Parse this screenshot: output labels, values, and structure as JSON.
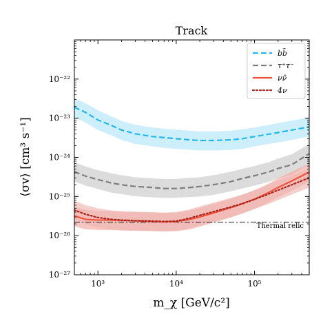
{
  "chart_data": {
    "type": "line",
    "title": "Track",
    "xlabel": "m_χ [GeV/c²]",
    "ylabel": "⟨σv⟩ [cm³ s⁻¹]",
    "x_scale": "log",
    "y_scale": "log",
    "xlim": [
      500,
      500000
    ],
    "ylim": [
      1e-27,
      1e-21
    ],
    "x_ticks": [
      {
        "value": 1000,
        "label": "10³"
      },
      {
        "value": 10000,
        "label": "10⁴"
      },
      {
        "value": 100000,
        "label": "10⁵"
      }
    ],
    "y_ticks": [
      {
        "value": 1e-27,
        "label": "10⁻²⁷"
      },
      {
        "value": 1e-26,
        "label": "10⁻²⁶"
      },
      {
        "value": 1e-25,
        "label": "10⁻²⁵"
      },
      {
        "value": 1e-24,
        "label": "10⁻²⁴"
      },
      {
        "value": 1e-23,
        "label": "10⁻²³"
      },
      {
        "value": 1e-22,
        "label": "10⁻²²"
      }
    ],
    "legend_position": "top-right",
    "series": [
      {
        "name": "bb̄",
        "color": "#22b8ee",
        "band_color": "#c4ecfa",
        "style": "dashed",
        "x": [
          500,
          700,
          1000,
          1500,
          2000,
          3000,
          5000,
          7000,
          10000,
          15000,
          20000,
          30000,
          50000,
          70000,
          100000,
          150000,
          200000,
          300000,
          500000
        ],
        "y": [
          1.9e-23,
          1.4e-23,
          9e-24,
          6.5e-24,
          5e-24,
          4e-24,
          3.4e-24,
          3.2e-24,
          3e-24,
          2.8e-24,
          2.7e-24,
          2.7e-24,
          2.8e-24,
          3e-24,
          3.4e-24,
          3.9e-24,
          4.3e-24,
          5e-24,
          6e-24
        ],
        "upper": [
          3.2e-23,
          2.4e-23,
          1.6e-23,
          1.1e-23,
          8.5e-24,
          6.8e-24,
          5.8e-24,
          5.4e-24,
          5.1e-24,
          4.8e-24,
          4.6e-24,
          4.6e-24,
          4.8e-24,
          5.2e-24,
          5.8e-24,
          6.7e-24,
          7.5e-24,
          8.7e-24,
          1.05e-23
        ],
        "lower": [
          1.05e-23,
          7.7e-24,
          5e-24,
          3.6e-24,
          2.8e-24,
          2.2e-24,
          1.9e-24,
          1.75e-24,
          1.65e-24,
          1.55e-24,
          1.5e-24,
          1.5e-24,
          1.55e-24,
          1.65e-24,
          1.9e-24,
          2.2e-24,
          2.4e-24,
          2.8e-24,
          3.4e-24
        ]
      },
      {
        "name": "τ⁺τ⁻",
        "color": "#7d7d7d",
        "band_color": "#d6d6d6",
        "style": "dashed",
        "x": [
          500,
          700,
          1000,
          1500,
          2000,
          3000,
          5000,
          7000,
          10000,
          15000,
          20000,
          30000,
          50000,
          70000,
          100000,
          150000,
          200000,
          300000,
          500000
        ],
        "y": [
          4.3e-25,
          3.3e-25,
          2.7e-25,
          2.2e-25,
          2e-25,
          1.8e-25,
          1.7e-25,
          1.6e-25,
          1.6e-25,
          1.7e-25,
          1.8e-25,
          2e-25,
          2.4e-25,
          2.9e-25,
          3.4e-25,
          4.2e-25,
          5.2e-25,
          6.5e-25,
          1.25e-24
        ],
        "upper": [
          7.5e-25,
          5.8e-25,
          4.7e-25,
          3.9e-25,
          3.5e-25,
          3.1e-25,
          2.9e-25,
          2.8e-25,
          2.8e-25,
          3e-25,
          3.1e-25,
          3.5e-25,
          4.3e-25,
          5.1e-25,
          6e-25,
          7.5e-25,
          9.3e-25,
          1.2e-24,
          2.2e-24
        ],
        "lower": [
          2.4e-25,
          1.9e-25,
          1.55e-25,
          1.25e-25,
          1.15e-25,
          1.02e-25,
          9.5e-26,
          9.2e-26,
          9.3e-26,
          9.7e-26,
          1e-25,
          1.1e-25,
          1.35e-25,
          1.6e-25,
          1.9e-25,
          2.35e-25,
          2.9e-25,
          3.6e-25,
          7e-25
        ]
      },
      {
        "name": "νν̄",
        "color": "#f0533c",
        "band_color": "#f2a8a0",
        "style": "solid",
        "x": [
          500,
          700,
          1000,
          1500,
          2000,
          3000,
          5000,
          7000,
          10000,
          15000,
          20000,
          30000,
          50000,
          70000,
          100000,
          150000,
          200000,
          300000,
          500000
        ],
        "y": [
          3.2e-26,
          2.6e-26,
          2.5e-26,
          2.5e-26,
          2.45e-26,
          2.4e-26,
          2.3e-26,
          2.25e-26,
          2.3e-26,
          2.6e-26,
          3e-26,
          3.8e-26,
          5.2e-26,
          6.5e-26,
          8.5e-26,
          1.25e-25,
          1.7e-25,
          2.5e-25,
          4.2e-25
        ],
        "upper": [
          5.5e-26,
          4.6e-26,
          4.3e-26,
          4.2e-26,
          4.1e-26,
          4e-26,
          3.9e-26,
          3.8e-26,
          3.9e-26,
          4.4e-26,
          5.1e-26,
          6.5e-26,
          8.8e-26,
          1.1e-25,
          1.45e-25,
          2.1e-25,
          2.9e-25,
          4.3e-25,
          7e-25
        ],
        "lower": [
          1.75e-26,
          1.45e-26,
          1.4e-26,
          1.4e-26,
          1.35e-26,
          1.33e-26,
          1.3e-26,
          1.27e-26,
          1.3e-26,
          1.45e-26,
          1.7e-26,
          2.15e-26,
          2.9e-26,
          3.7e-26,
          4.8e-26,
          7e-26,
          9.5e-26,
          1.4e-25,
          2.4e-25
        ]
      },
      {
        "name": "4ν",
        "color": "#a8231b",
        "band_color": "#eeb7b2",
        "style": "dotted",
        "x": [
          500,
          700,
          1000,
          1500,
          2000,
          3000,
          5000,
          7000,
          10000,
          15000,
          20000,
          30000,
          50000,
          70000,
          100000,
          150000,
          200000,
          300000,
          500000
        ],
        "y": [
          4.5e-26,
          3.5e-26,
          2.9e-26,
          2.6e-26,
          2.5e-26,
          2.4e-26,
          2.35e-26,
          2.3e-26,
          2.35e-26,
          2.8e-26,
          3.3e-26,
          4.1e-26,
          5.4e-26,
          6.6e-26,
          8.5e-26,
          1.15e-25,
          1.45e-25,
          2e-25,
          3e-25
        ],
        "upper": [
          7.8e-26,
          6e-26,
          5e-26,
          4.4e-26,
          4.2e-26,
          4.1e-26,
          4e-26,
          3.9e-26,
          4e-26,
          4.7e-26,
          5.6e-26,
          7e-26,
          9.2e-26,
          1.12e-25,
          1.45e-25,
          1.95e-25,
          2.5e-25,
          3.4e-25,
          5.1e-25
        ],
        "lower": [
          2.5e-26,
          1.95e-26,
          1.6e-26,
          1.45e-26,
          1.4e-26,
          1.35e-26,
          1.32e-26,
          1.3e-26,
          1.32e-26,
          1.57e-26,
          1.85e-26,
          2.3e-26,
          3e-26,
          3.7e-26,
          4.8e-26,
          6.4e-26,
          8.1e-26,
          1.12e-25,
          1.7e-25
        ]
      }
    ],
    "reference_line": {
      "name": "Thermal relic",
      "y": 2.2e-26,
      "color": "#333333",
      "style": "dash-dot"
    }
  }
}
